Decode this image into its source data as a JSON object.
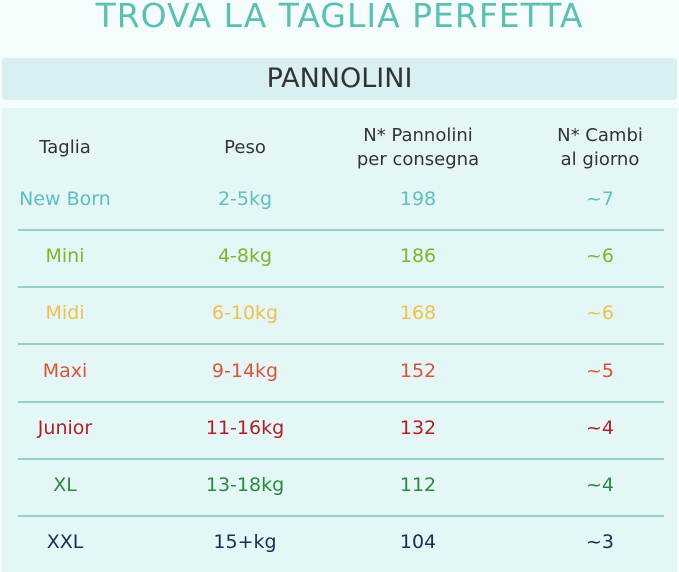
{
  "title": "TROVA LA TAGLIA PERFETTA",
  "section": "PANNOLINI",
  "headers": [
    "Taglia",
    "Peso",
    "N* Pannolini\nper consegna",
    "N* Cambi\nal giorno"
  ],
  "rows": [
    {
      "taglia": "New Born",
      "peso": "2-5kg",
      "pannolini": "198",
      "cambi": "~7",
      "color": "#5cbfc0"
    },
    {
      "taglia": "Mini",
      "peso": "4-8kg",
      "pannolini": "186",
      "cambi": "~6",
      "color": "#7fb52a"
    },
    {
      "taglia": "Midi",
      "peso": "6-10kg",
      "pannolini": "168",
      "cambi": "~6",
      "color": "#f0c04c"
    },
    {
      "taglia": "Maxi",
      "peso": "9-14kg",
      "pannolini": "152",
      "cambi": "~5",
      "color": "#d8553a"
    },
    {
      "taglia": "Junior",
      "peso": "11-16kg",
      "pannolini": "132",
      "cambi": "~4",
      "color": "#b01f26"
    },
    {
      "taglia": "XL",
      "peso": "13-18kg",
      "pannolini": "112",
      "cambi": "~4",
      "color": "#2a8a3c"
    },
    {
      "taglia": "XXL",
      "peso": "15+kg",
      "pannolini": "104",
      "cambi": "~3",
      "color": "#1c2a5a"
    }
  ]
}
